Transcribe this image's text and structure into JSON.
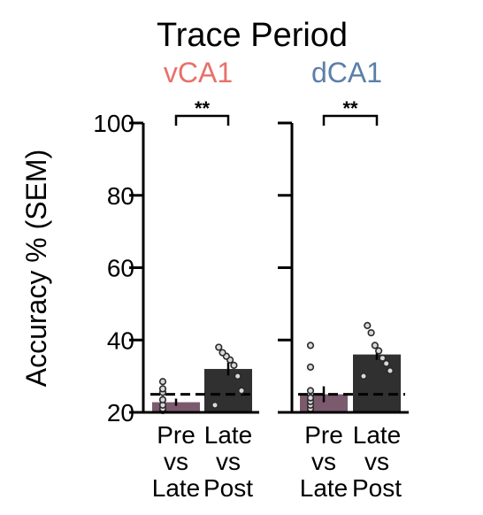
{
  "chart_data": {
    "type": "bar",
    "title": "Trace Period",
    "ylabel": "Accuracy % (SEM)",
    "ylim": [
      20,
      100
    ],
    "yticks": [
      20,
      40,
      60,
      80,
      100
    ],
    "chance_level": 25,
    "grid": false,
    "colors": {
      "pre": "#7c5a6e",
      "late": "#303030",
      "vCA1": "#e8706a",
      "dCA1": "#5b7fa8"
    },
    "panels": [
      {
        "name": "vCA1",
        "significance": "**",
        "categories": [
          {
            "lines": [
              "Pre",
              "vs",
              "Late"
            ],
            "value": 22.8,
            "sem": 1.0,
            "points": [
              20.5,
              21.0,
              22.0,
              23.5,
              25.5,
              26.5,
              28.5
            ]
          },
          {
            "lines": [
              "Late",
              "vs",
              "Post"
            ],
            "value": 32.0,
            "sem": 1.8,
            "points": [
              22.0,
              26.0,
              30.0,
              33.0,
              34.5,
              35.5,
              36.5,
              38.0
            ]
          }
        ]
      },
      {
        "name": "dCA1",
        "significance": "**",
        "categories": [
          {
            "lines": [
              "Pre",
              "vs",
              "Late"
            ],
            "value": 25.0,
            "sem": 2.2,
            "points": [
              21.0,
              22.0,
              23.0,
              24.0,
              26.0,
              32.5,
              38.5
            ]
          },
          {
            "lines": [
              "Late",
              "vs",
              "Post"
            ],
            "value": 36.0,
            "sem": 1.5,
            "points": [
              30.0,
              31.5,
              33.5,
              35.0,
              37.0,
              38.5,
              42.0,
              44.0
            ]
          }
        ]
      }
    ]
  }
}
